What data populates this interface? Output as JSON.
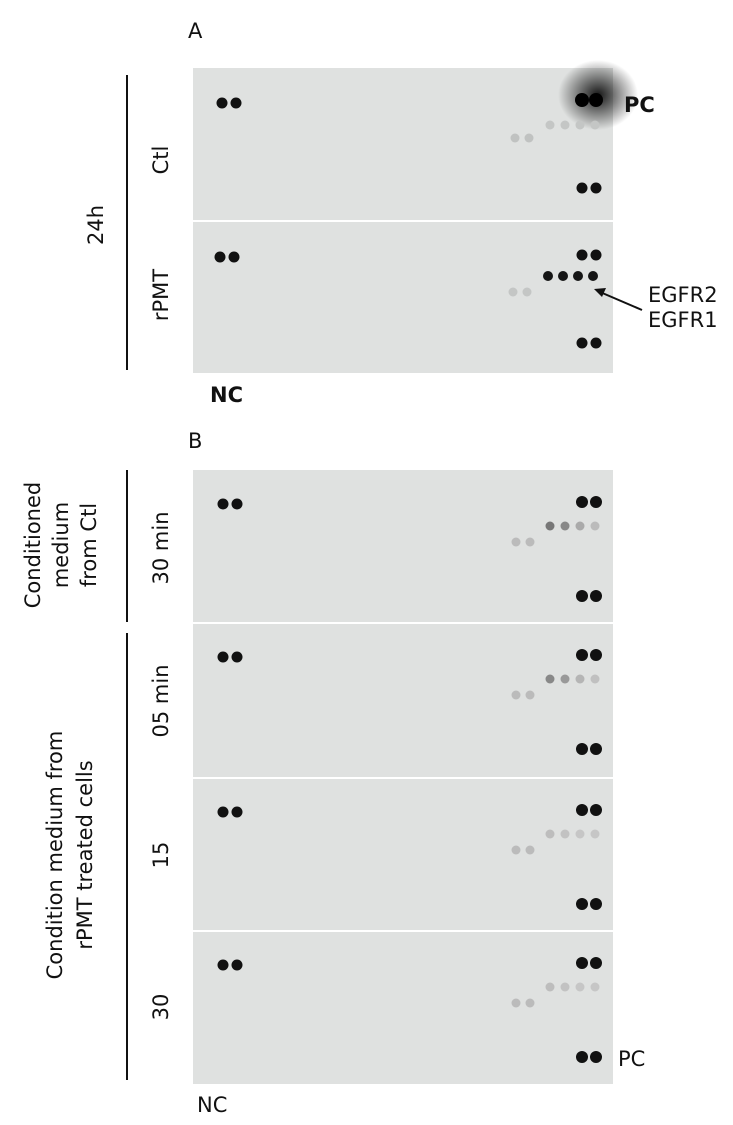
{
  "panel_a": {
    "label": "A",
    "group_label": "24h",
    "rows": [
      {
        "label": "Ctl"
      },
      {
        "label": "rPMT"
      }
    ],
    "pc_label": "PC",
    "arrow_labels": [
      "EGFR2",
      "EGFR1"
    ],
    "nc_label": "NC"
  },
  "panel_b": {
    "label": "B",
    "groups": [
      {
        "lines": [
          "Conditioned",
          "medium",
          "from Ctl"
        ]
      },
      {
        "lines": [
          "Condition medium from",
          "rPMT treated cells"
        ]
      }
    ],
    "rows": [
      {
        "label": "30 min"
      },
      {
        "label": "05 min"
      },
      {
        "label": "15"
      },
      {
        "label": "30"
      }
    ],
    "pc_label": "PC",
    "nc_label": "NC"
  }
}
